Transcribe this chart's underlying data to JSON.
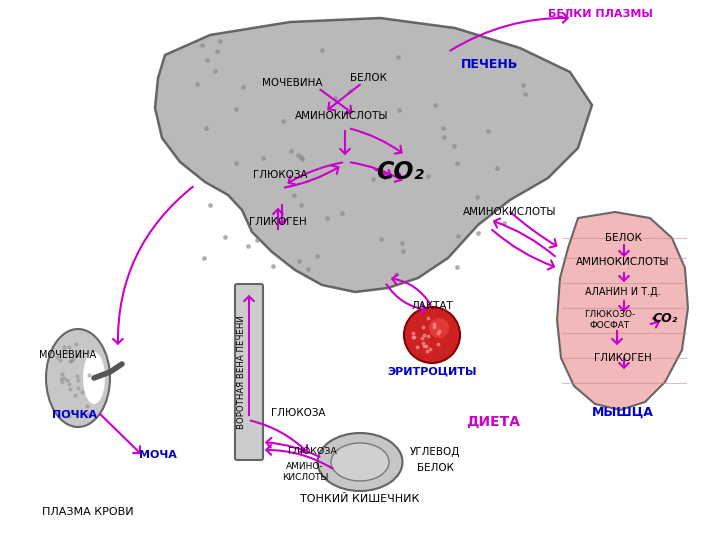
{
  "title": "",
  "bg_color": "#ffffff",
  "arrow_color": "#cc00cc",
  "blue_text_color": "#0000cc",
  "black_text_color": "#000000",
  "magenta_text_color": "#cc00cc",
  "liver_color": "#b0b0b0",
  "liver_edge": "#555555",
  "kidney_color": "#c0c0c0",
  "kidney_edge": "#555555",
  "muscle_color": "#f0b0b0",
  "muscle_edge": "#555555",
  "erythrocyte_color": "#cc2222",
  "intestine_color": "#c0c0c0",
  "intestine_edge": "#555555",
  "dot_color": "#888888",
  "labels": {
    "liver": "ПЕЧЕНЬ",
    "kidney": "ПОЧКА",
    "urea_kidney": "МОЧЕВИНА",
    "urine": "МОЧА",
    "plasma": "ПЛАЗМА КРОВИ",
    "liver_urea": "МОЧЕВИНА",
    "liver_protein": "БЕЛОК",
    "liver_amino": "АМИНОКИСЛОТЫ",
    "liver_glucose": "ГЛЮКОЗА",
    "liver_glycogen": "ГЛИКОГЕН",
    "liver_co2": "CO₂",
    "portal_vein": "ВОРОТНАЯ ВЕНА ПЕЧЕНИ",
    "erythrocyte": "ЭРИТРОЦИТЫ",
    "lactate": "ЛАКТАТ",
    "glucose_bottom": "ГЛЮКОЗА",
    "intestine": "ТОНКИЙ КИШЕЧНИК",
    "intestine_glucose": "ГЛЮКОЗА",
    "intestine_amino": "АМИНО-\nКИСЛОТЫ",
    "diet": "ДИЕТА",
    "carb": "УГЛЕВОД",
    "protein_diet": "БЕЛОК",
    "plasma_proteins": "БЕЛКИ ПЛАЗМЫ",
    "amino_right": "АМИНОКИСЛОТЫ",
    "muscle": "МЫШЦА",
    "muscle_protein": "БЕЛОК",
    "muscle_amino": "АМИНОКИСЛОТЫ",
    "alanine": "АЛАНИН И Т.Д.",
    "glucose_phosphate": "ГЛЮКОЗО-\nФОСФАТ",
    "co2_muscle": "CO₂",
    "glycogen_muscle": "ГЛИКОГЕН"
  }
}
